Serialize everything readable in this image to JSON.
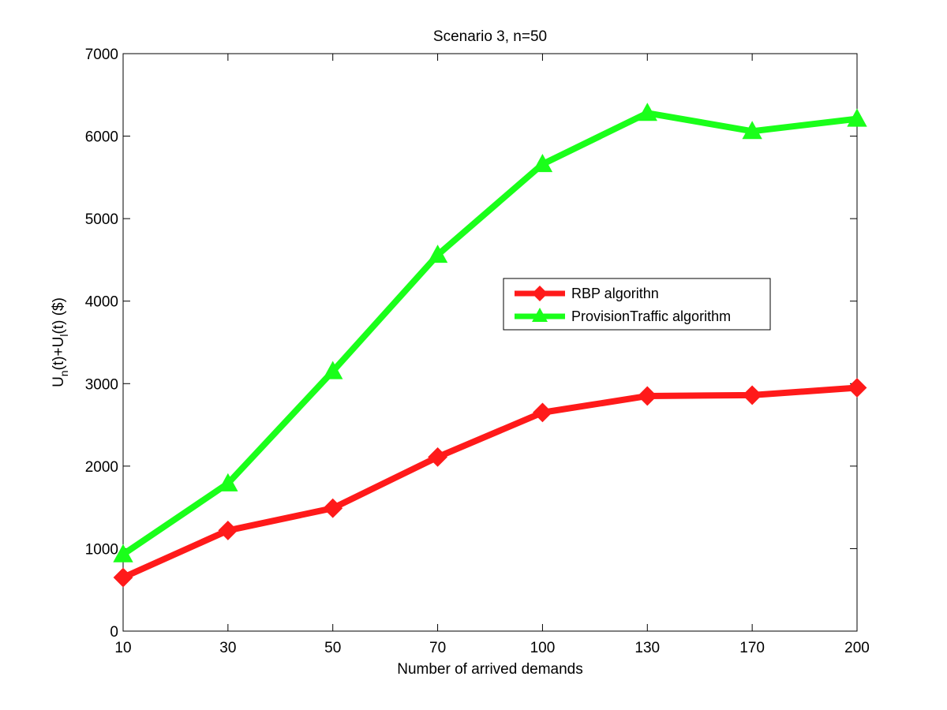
{
  "chart_data": {
    "type": "line",
    "title": "Scenario 3, n=50",
    "xlabel": "Number of arrived demands",
    "ylabel": {
      "base": "U",
      "sub1": "n",
      "mid": "(t)+U",
      "sub2": "l",
      "tail": "(t) ($)"
    },
    "categories": [
      "10",
      "30",
      "50",
      "70",
      "100",
      "130",
      "170",
      "200"
    ],
    "ylim": [
      0,
      7000
    ],
    "yticks": [
      0,
      1000,
      2000,
      3000,
      4000,
      5000,
      6000,
      7000
    ],
    "grid": false,
    "legend_position": "center-right",
    "series": [
      {
        "name": "RBP algorithn",
        "color": "#ff1a1a",
        "marker": "diamond",
        "values": [
          650,
          1220,
          1490,
          2110,
          2650,
          2850,
          2860,
          2950
        ]
      },
      {
        "name": "ProvisionTraffic algorithm",
        "color": "#1aff1a",
        "marker": "triangle",
        "values": [
          930,
          1790,
          3150,
          4560,
          5660,
          6280,
          6060,
          6210
        ]
      }
    ]
  }
}
